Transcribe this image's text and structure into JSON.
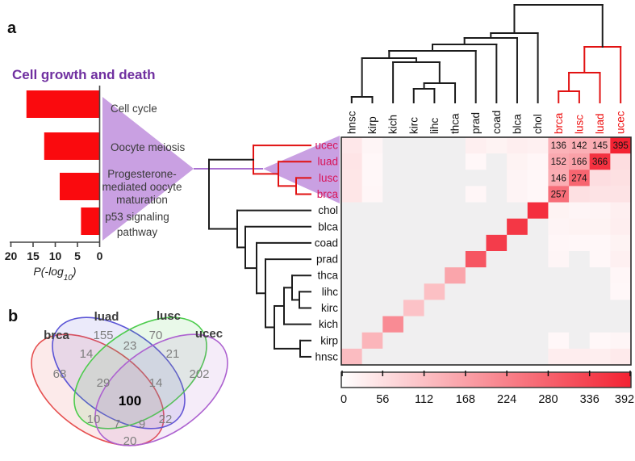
{
  "panel_labels": {
    "a": "a",
    "b": "b"
  },
  "chart_data": [
    {
      "id": "pathway-bar-chart",
      "type": "bar",
      "title": "Cell growth and death",
      "title_color": "#7030a0",
      "bar_color": "#fa0a0e",
      "xlabel": "P(-log10)",
      "x_ticks": [
        20,
        15,
        10,
        5,
        0
      ],
      "xlim": [
        20,
        0
      ],
      "categories": [
        "Cell cycle",
        "Oocyte meiosis",
        "Progesterone-mediated oocyte maturation",
        "p53 signaling pathway"
      ],
      "category_lines": [
        [
          "Cell cycle"
        ],
        [
          "Oocyte meiosis"
        ],
        [
          "Progesterone-",
          "mediated oocyte",
          "maturation"
        ],
        [
          "p53 signaling",
          "pathway"
        ]
      ],
      "values": [
        16.5,
        12.5,
        9.0,
        4.2
      ]
    },
    {
      "id": "cancer-overlap-heatmap",
      "type": "heatmap",
      "columns": [
        "hnsc",
        "kirp",
        "kich",
        "kirc",
        "lihc",
        "thca",
        "prad",
        "coad",
        "blca",
        "chol",
        "brca",
        "lusc",
        "luad",
        "ucec"
      ],
      "rows": [
        "ucec",
        "luad",
        "lusc",
        "brca",
        "chol",
        "blca",
        "coad",
        "prad",
        "thca",
        "lihc",
        "kirc",
        "kich",
        "kirp",
        "hnsc"
      ],
      "highlight_group": [
        "brca",
        "lusc",
        "luad",
        "ucec"
      ],
      "vmin": 0,
      "vmax": 392,
      "colorbar_ticks": [
        0,
        56,
        112,
        168,
        224,
        280,
        336,
        392
      ],
      "matrix": [
        [
          42,
          18,
          10,
          5,
          5,
          8,
          28,
          22,
          30,
          26,
          136,
          142,
          145,
          395
        ],
        [
          48,
          14,
          8,
          5,
          5,
          8,
          14,
          10,
          22,
          16,
          152,
          166,
          366,
          60
        ],
        [
          45,
          14,
          8,
          5,
          5,
          8,
          12,
          10,
          20,
          14,
          146,
          274,
          60,
          55
        ],
        [
          45,
          16,
          10,
          5,
          5,
          10,
          16,
          12,
          20,
          14,
          257,
          55,
          50,
          50
        ],
        [
          12,
          6,
          8,
          5,
          8,
          5,
          10,
          12,
          12,
          370,
          22,
          18,
          20,
          28
        ],
        [
          10,
          6,
          6,
          5,
          5,
          6,
          10,
          12,
          355,
          12,
          20,
          22,
          22,
          30
        ],
        [
          10,
          6,
          6,
          5,
          5,
          6,
          10,
          345,
          12,
          12,
          16,
          14,
          14,
          22
        ],
        [
          12,
          6,
          8,
          5,
          5,
          8,
          300,
          10,
          10,
          10,
          18,
          12,
          14,
          26
        ],
        [
          8,
          5,
          6,
          5,
          5,
          160,
          8,
          6,
          6,
          6,
          12,
          10,
          10,
          16
        ],
        [
          8,
          5,
          6,
          6,
          112,
          5,
          8,
          8,
          6,
          8,
          10,
          8,
          10,
          14
        ],
        [
          8,
          5,
          5,
          108,
          6,
          5,
          6,
          6,
          6,
          6,
          8,
          8,
          10,
          12
        ],
        [
          8,
          5,
          205,
          5,
          5,
          5,
          6,
          6,
          6,
          6,
          8,
          8,
          8,
          12
        ],
        [
          12,
          132,
          5,
          5,
          5,
          5,
          6,
          6,
          6,
          6,
          14,
          12,
          14,
          18
        ],
        [
          118,
          12,
          5,
          5,
          5,
          8,
          8,
          8,
          12,
          12,
          32,
          32,
          30,
          38
        ]
      ],
      "labeled_cells": [
        {
          "row": "ucec",
          "col": "brca",
          "value": 136
        },
        {
          "row": "ucec",
          "col": "lusc",
          "value": 142
        },
        {
          "row": "ucec",
          "col": "luad",
          "value": 145
        },
        {
          "row": "ucec",
          "col": "ucec",
          "value": 395
        },
        {
          "row": "luad",
          "col": "brca",
          "value": 152
        },
        {
          "row": "luad",
          "col": "lusc",
          "value": 166
        },
        {
          "row": "luad",
          "col": "luad",
          "value": 366
        },
        {
          "row": "lusc",
          "col": "brca",
          "value": 146
        },
        {
          "row": "lusc",
          "col": "lusc",
          "value": 274
        },
        {
          "row": "brca",
          "col": "brca",
          "value": 257
        }
      ]
    },
    {
      "id": "gene-overlap-venn",
      "type": "venn",
      "sets": [
        {
          "name": "brca",
          "color": "#e65050"
        },
        {
          "name": "luad",
          "color": "#5b55d6"
        },
        {
          "name": "lusc",
          "color": "#4ccc4c"
        },
        {
          "name": "ucec",
          "color": "#ad62d0"
        }
      ],
      "regions": [
        {
          "sets": [
            "brca"
          ],
          "value": 68
        },
        {
          "sets": [
            "luad"
          ],
          "value": 155
        },
        {
          "sets": [
            "lusc"
          ],
          "value": 70
        },
        {
          "sets": [
            "ucec"
          ],
          "value": 202
        },
        {
          "sets": [
            "brca",
            "luad"
          ],
          "value": 14
        },
        {
          "sets": [
            "luad",
            "lusc"
          ],
          "value": 23
        },
        {
          "sets": [
            "lusc",
            "ucec"
          ],
          "value": 21
        },
        {
          "sets": [
            "brca",
            "lusc"
          ],
          "value": 10
        },
        {
          "sets": [
            "luad",
            "ucec"
          ],
          "value": 22
        },
        {
          "sets": [
            "brca",
            "ucec"
          ],
          "value": 20
        },
        {
          "sets": [
            "brca",
            "luad",
            "lusc"
          ],
          "value": 29
        },
        {
          "sets": [
            "luad",
            "lusc",
            "ucec"
          ],
          "value": 14
        },
        {
          "sets": [
            "brca",
            "lusc",
            "ucec"
          ],
          "value": 7
        },
        {
          "sets": [
            "brca",
            "luad",
            "ucec"
          ],
          "value": 9
        },
        {
          "sets": [
            "brca",
            "luad",
            "lusc",
            "ucec"
          ],
          "value": 100
        }
      ]
    }
  ],
  "colors": {
    "dendrogram_black": "#1c1c1c",
    "dendrogram_red": "#e11212",
    "row_label_red": "#d81458",
    "col_label_red": "#ee1111",
    "funnel_purple": "#c9a0e2",
    "funnel_line": "#a86fd0"
  }
}
